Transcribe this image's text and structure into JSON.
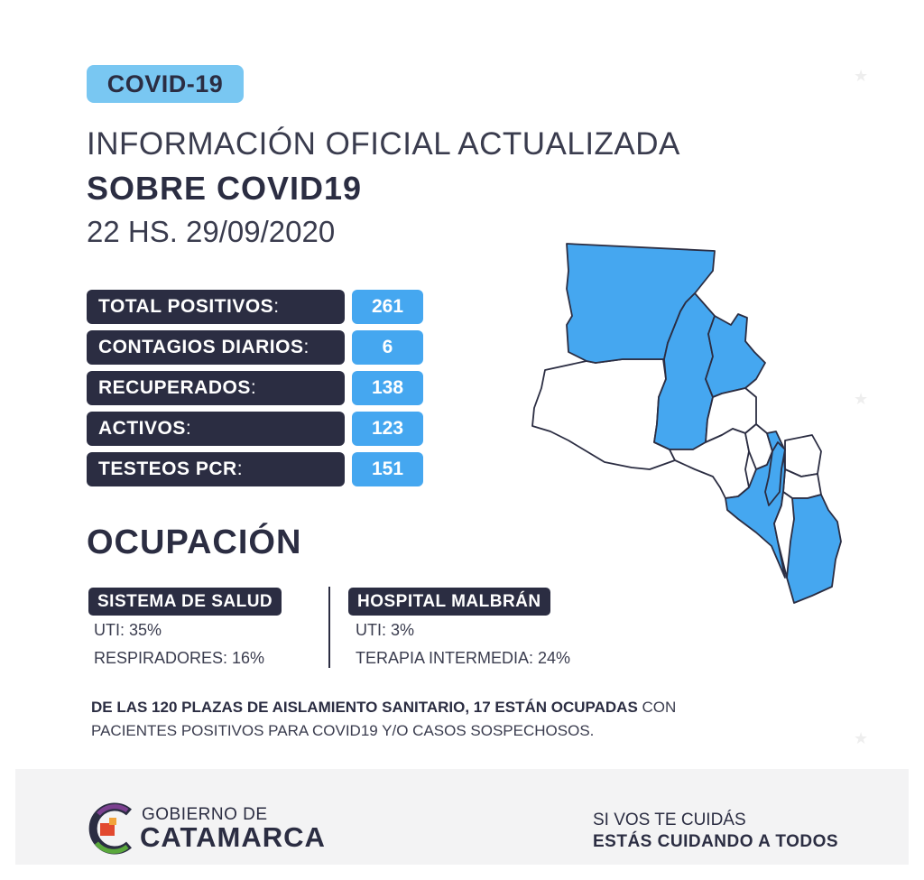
{
  "badge": "COVID-19",
  "heading": {
    "line1": "INFORMACIÓN OFICIAL ACTUALIZADA",
    "line2": "SOBRE COVID19",
    "date": "22 HS. 29/09/2020"
  },
  "stats": [
    {
      "label": "TOTAL POSITIVOS",
      "value": "261"
    },
    {
      "label": "CONTAGIOS DIARIOS",
      "value": "6"
    },
    {
      "label": "RECUPERADOS",
      "value": "138"
    },
    {
      "label": "ACTIVOS",
      "value": "123"
    },
    {
      "label": "TESTEOS PCR",
      "value": "151"
    }
  ],
  "ocupacion": {
    "title": "OCUPACIÓN",
    "sistema": {
      "label": "SISTEMA DE SALUD",
      "uti": "UTI: 35%",
      "resp": "RESPIRADORES: 16%"
    },
    "hospital": {
      "label": "HOSPITAL MALBRÁN",
      "uti": "UTI: 3%",
      "terapia": "TERAPIA INTERMEDIA: 24%"
    }
  },
  "note": {
    "bold": "DE LAS 120 PLAZAS DE AISLAMIENTO SANITARIO, 17 ESTÁN OCUPADAS",
    "rest1": " CON",
    "rest2": "PACIENTES POSITIVOS PARA COVID19 Y/O CASOS SOSPECHOSOS."
  },
  "footer": {
    "gov_top": "GOBIERNO DE",
    "gov_bottom": "CATAMARCA",
    "slogan_top": "SI VOS TE CUIDÁS",
    "slogan_bottom": "ESTÁS CUIDANDO A TODOS"
  },
  "colors": {
    "dark": "#2b2d42",
    "accent_blue": "#45a7f0",
    "badge_blue": "#79c7f2",
    "map_highlight": "#45a7f0"
  },
  "icons": [
    "catamarca-logo-icon",
    "map-of-catamarca-icon",
    "star-icon"
  ]
}
